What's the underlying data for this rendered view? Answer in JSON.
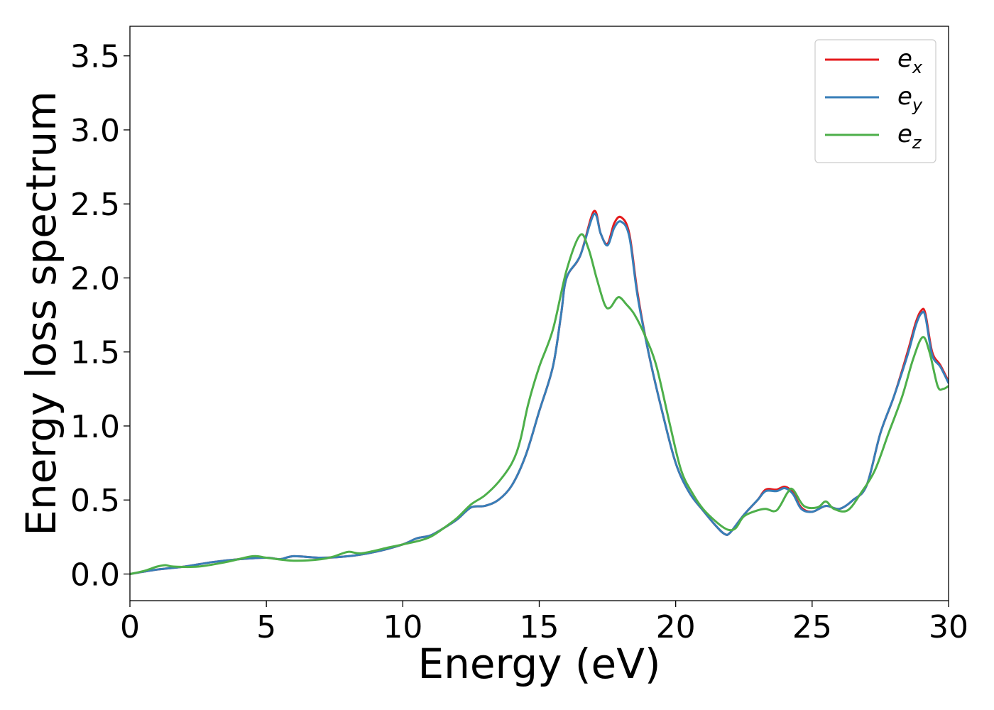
{
  "chart_data": {
    "type": "line",
    "title": "",
    "xlabel": "Energy (eV)",
    "ylabel": "Energy loss spectrum",
    "xlim": [
      0,
      30
    ],
    "ylim": [
      -0.18,
      3.7
    ],
    "xticks": [
      0,
      5,
      10,
      15,
      20,
      25,
      30
    ],
    "xtick_labels": [
      "0",
      "5",
      "10",
      "15",
      "20",
      "25",
      "30"
    ],
    "yticks": [
      0.0,
      0.5,
      1.0,
      1.5,
      2.0,
      2.5,
      3.0,
      3.5
    ],
    "ytick_labels": [
      "0.0",
      "0.5",
      "1.0",
      "1.5",
      "2.0",
      "2.5",
      "3.0",
      "3.5"
    ],
    "grid": false,
    "legend_position": "top-right",
    "series": [
      {
        "name": "e_x",
        "legend_base": "e",
        "legend_sub": "x",
        "color": "#e41a1c",
        "points": [
          [
            0,
            0
          ],
          [
            1,
            0.03
          ],
          [
            2,
            0.05
          ],
          [
            3,
            0.08
          ],
          [
            4,
            0.1
          ],
          [
            5,
            0.11
          ],
          [
            5.5,
            0.1
          ],
          [
            6,
            0.12
          ],
          [
            7,
            0.11
          ],
          [
            8,
            0.12
          ],
          [
            9,
            0.15
          ],
          [
            10,
            0.2
          ],
          [
            10.5,
            0.24
          ],
          [
            11,
            0.26
          ],
          [
            11.5,
            0.31
          ],
          [
            12,
            0.37
          ],
          [
            12.5,
            0.45
          ],
          [
            13,
            0.46
          ],
          [
            13.5,
            0.5
          ],
          [
            14,
            0.6
          ],
          [
            14.5,
            0.8
          ],
          [
            15,
            1.1
          ],
          [
            15.5,
            1.4
          ],
          [
            15.8,
            1.75
          ],
          [
            16,
            2.0
          ],
          [
            16.5,
            2.15
          ],
          [
            17,
            2.45
          ],
          [
            17.25,
            2.3
          ],
          [
            17.5,
            2.23
          ],
          [
            17.75,
            2.37
          ],
          [
            18,
            2.41
          ],
          [
            18.3,
            2.3
          ],
          [
            18.6,
            1.9
          ],
          [
            19,
            1.5
          ],
          [
            19.5,
            1.1
          ],
          [
            20,
            0.75
          ],
          [
            20.5,
            0.55
          ],
          [
            21,
            0.43
          ],
          [
            21.5,
            0.32
          ],
          [
            21.8,
            0.27
          ],
          [
            22,
            0.28
          ],
          [
            22.5,
            0.4
          ],
          [
            23,
            0.5
          ],
          [
            23.3,
            0.57
          ],
          [
            23.7,
            0.57
          ],
          [
            24,
            0.59
          ],
          [
            24.3,
            0.55
          ],
          [
            24.6,
            0.45
          ],
          [
            25,
            0.42
          ],
          [
            25.5,
            0.46
          ],
          [
            26,
            0.44
          ],
          [
            26.5,
            0.5
          ],
          [
            27,
            0.6
          ],
          [
            27.5,
            0.95
          ],
          [
            28,
            1.2
          ],
          [
            28.5,
            1.5
          ],
          [
            28.8,
            1.7
          ],
          [
            29,
            1.78
          ],
          [
            29.15,
            1.76
          ],
          [
            29.4,
            1.5
          ],
          [
            29.7,
            1.41
          ],
          [
            30,
            1.3
          ]
        ]
      },
      {
        "name": "e_y",
        "legend_base": "e",
        "legend_sub": "y",
        "color": "#377eb8",
        "points": [
          [
            0,
            0
          ],
          [
            1,
            0.03
          ],
          [
            2,
            0.05
          ],
          [
            3,
            0.08
          ],
          [
            4,
            0.1
          ],
          [
            5,
            0.11
          ],
          [
            5.5,
            0.1
          ],
          [
            6,
            0.12
          ],
          [
            7,
            0.11
          ],
          [
            8,
            0.12
          ],
          [
            9,
            0.15
          ],
          [
            10,
            0.2
          ],
          [
            10.5,
            0.24
          ],
          [
            11,
            0.26
          ],
          [
            11.5,
            0.31
          ],
          [
            12,
            0.37
          ],
          [
            12.5,
            0.45
          ],
          [
            13,
            0.46
          ],
          [
            13.5,
            0.5
          ],
          [
            14,
            0.6
          ],
          [
            14.5,
            0.8
          ],
          [
            15,
            1.1
          ],
          [
            15.5,
            1.4
          ],
          [
            15.8,
            1.75
          ],
          [
            16,
            2.0
          ],
          [
            16.5,
            2.15
          ],
          [
            17,
            2.43
          ],
          [
            17.25,
            2.3
          ],
          [
            17.5,
            2.22
          ],
          [
            17.75,
            2.34
          ],
          [
            18,
            2.38
          ],
          [
            18.3,
            2.28
          ],
          [
            18.6,
            1.88
          ],
          [
            19,
            1.5
          ],
          [
            19.5,
            1.1
          ],
          [
            20,
            0.75
          ],
          [
            20.5,
            0.55
          ],
          [
            21,
            0.43
          ],
          [
            21.5,
            0.32
          ],
          [
            21.8,
            0.27
          ],
          [
            22,
            0.28
          ],
          [
            22.5,
            0.4
          ],
          [
            23,
            0.5
          ],
          [
            23.3,
            0.56
          ],
          [
            23.7,
            0.56
          ],
          [
            24,
            0.58
          ],
          [
            24.3,
            0.54
          ],
          [
            24.6,
            0.44
          ],
          [
            25,
            0.42
          ],
          [
            25.5,
            0.46
          ],
          [
            26,
            0.44
          ],
          [
            26.5,
            0.5
          ],
          [
            27,
            0.6
          ],
          [
            27.5,
            0.95
          ],
          [
            28,
            1.2
          ],
          [
            28.5,
            1.48
          ],
          [
            28.8,
            1.68
          ],
          [
            29,
            1.76
          ],
          [
            29.15,
            1.74
          ],
          [
            29.4,
            1.48
          ],
          [
            29.7,
            1.4
          ],
          [
            30,
            1.29
          ]
        ]
      },
      {
        "name": "e_z",
        "legend_base": "e",
        "legend_sub": "z",
        "color": "#4daf4a",
        "points": [
          [
            0,
            0
          ],
          [
            0.5,
            0.02
          ],
          [
            1,
            0.05
          ],
          [
            1.3,
            0.06
          ],
          [
            1.6,
            0.05
          ],
          [
            2.5,
            0.05
          ],
          [
            3.5,
            0.08
          ],
          [
            4.5,
            0.12
          ],
          [
            5,
            0.11
          ],
          [
            6,
            0.09
          ],
          [
            7,
            0.1
          ],
          [
            7.5,
            0.12
          ],
          [
            8,
            0.15
          ],
          [
            8.5,
            0.14
          ],
          [
            9.5,
            0.18
          ],
          [
            10,
            0.2
          ],
          [
            10.5,
            0.22
          ],
          [
            11,
            0.25
          ],
          [
            11.5,
            0.31
          ],
          [
            12,
            0.38
          ],
          [
            12.5,
            0.47
          ],
          [
            13,
            0.53
          ],
          [
            13.5,
            0.62
          ],
          [
            14,
            0.75
          ],
          [
            14.3,
            0.9
          ],
          [
            14.6,
            1.15
          ],
          [
            15,
            1.4
          ],
          [
            15.5,
            1.65
          ],
          [
            16,
            2.05
          ],
          [
            16.5,
            2.29
          ],
          [
            16.8,
            2.2
          ],
          [
            17.1,
            2.0
          ],
          [
            17.4,
            1.82
          ],
          [
            17.6,
            1.8
          ],
          [
            17.9,
            1.87
          ],
          [
            18.2,
            1.82
          ],
          [
            18.5,
            1.75
          ],
          [
            18.9,
            1.6
          ],
          [
            19.3,
            1.4
          ],
          [
            19.8,
            1.0
          ],
          [
            20.2,
            0.7
          ],
          [
            20.6,
            0.55
          ],
          [
            21,
            0.44
          ],
          [
            21.5,
            0.35
          ],
          [
            21.9,
            0.3
          ],
          [
            22.2,
            0.31
          ],
          [
            22.5,
            0.39
          ],
          [
            23,
            0.43
          ],
          [
            23.3,
            0.44
          ],
          [
            23.7,
            0.43
          ],
          [
            24.1,
            0.55
          ],
          [
            24.3,
            0.57
          ],
          [
            24.7,
            0.46
          ],
          [
            25.2,
            0.45
          ],
          [
            25.5,
            0.49
          ],
          [
            25.8,
            0.44
          ],
          [
            26.3,
            0.43
          ],
          [
            26.8,
            0.55
          ],
          [
            27.3,
            0.7
          ],
          [
            27.8,
            0.95
          ],
          [
            28.3,
            1.2
          ],
          [
            28.7,
            1.45
          ],
          [
            29.05,
            1.6
          ],
          [
            29.3,
            1.5
          ],
          [
            29.6,
            1.27
          ],
          [
            29.8,
            1.25
          ],
          [
            30,
            1.27
          ]
        ]
      }
    ]
  }
}
